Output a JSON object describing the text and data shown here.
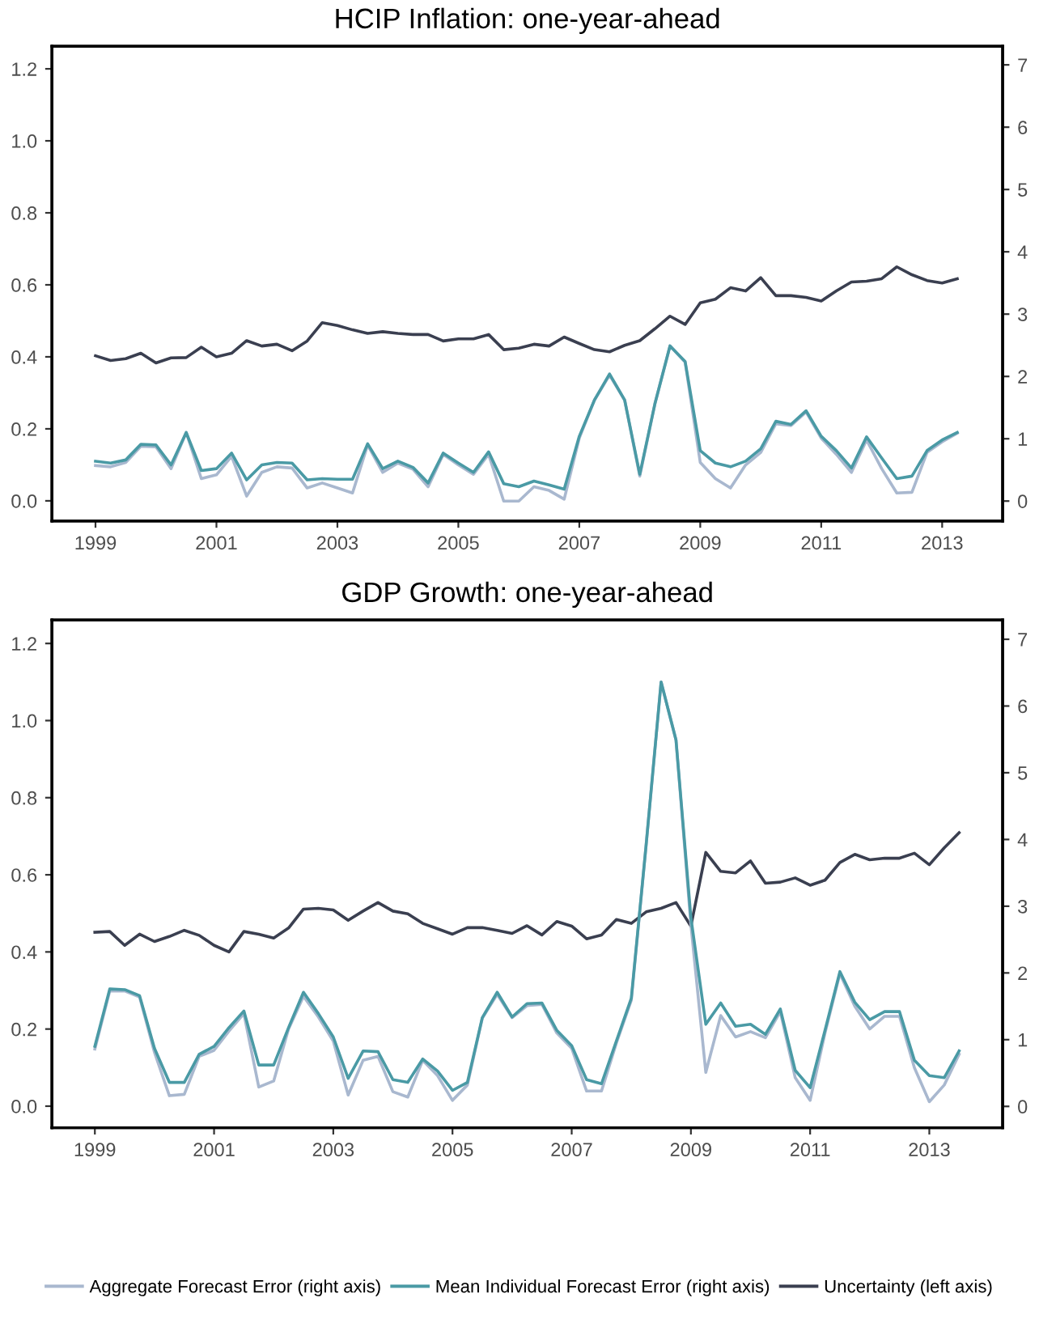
{
  "chart_data": [
    {
      "type": "line",
      "title": "HCIP Inflation: one-year-ahead",
      "x": [
        1999,
        1999.25,
        1999.5,
        1999.75,
        2000,
        2000.25,
        2000.5,
        2000.75,
        2001,
        2001.25,
        2001.5,
        2001.75,
        2002,
        2002.25,
        2002.5,
        2002.75,
        2003,
        2003.25,
        2003.5,
        2003.75,
        2004,
        2004.25,
        2004.5,
        2004.75,
        2005,
        2005.25,
        2005.5,
        2005.75,
        2006,
        2006.25,
        2006.5,
        2006.75,
        2007,
        2007.25,
        2007.5,
        2007.75,
        2008,
        2008.25,
        2008.5,
        2008.75,
        2009,
        2009.25,
        2009.5,
        2009.75,
        2010,
        2010.25,
        2010.5,
        2010.75,
        2011,
        2011.25,
        2011.5,
        2011.75,
        2012,
        2012.25,
        2012.5,
        2012.75,
        2013,
        2013.25
      ],
      "series": [
        {
          "name": "Aggregate Forecast Error (right axis)",
          "color": "#a9b8cf",
          "axis": "y2",
          "values": [
            0.57,
            0.55,
            0.62,
            0.88,
            0.87,
            0.52,
            1.1,
            0.36,
            0.42,
            0.72,
            0.08,
            0.46,
            0.55,
            0.53,
            0.21,
            0.29,
            0.21,
            0.13,
            0.9,
            0.46,
            0.61,
            0.51,
            0.23,
            0.75,
            0.58,
            0.43,
            0.75,
            0.0,
            0.0,
            0.23,
            0.17,
            0.03,
            1.01,
            1.62,
            2.02,
            1.62,
            0.4,
            1.56,
            2.49,
            2.23,
            0.62,
            0.36,
            0.21,
            0.58,
            0.78,
            1.24,
            1.21,
            1.43,
            1.01,
            0.75,
            0.46,
            0.98,
            0.52,
            0.13,
            0.14,
            0.78,
            0.95,
            1.09
          ]
        },
        {
          "name": "Mean Individual Forecast Error (right axis)",
          "color": "#4a9aa5",
          "axis": "y2",
          "values": [
            0.64,
            0.61,
            0.66,
            0.91,
            0.9,
            0.58,
            1.1,
            0.49,
            0.52,
            0.77,
            0.34,
            0.58,
            0.62,
            0.61,
            0.34,
            0.36,
            0.35,
            0.35,
            0.92,
            0.52,
            0.64,
            0.54,
            0.29,
            0.77,
            0.61,
            0.46,
            0.79,
            0.28,
            0.23,
            0.32,
            0.26,
            0.19,
            1.04,
            1.62,
            2.04,
            1.62,
            0.43,
            1.56,
            2.49,
            2.24,
            0.81,
            0.61,
            0.55,
            0.64,
            0.84,
            1.28,
            1.23,
            1.45,
            1.04,
            0.81,
            0.53,
            1.03,
            0.69,
            0.36,
            0.4,
            0.81,
            0.98,
            1.1
          ]
        },
        {
          "name": "Uncertainty (left axis)",
          "color": "#3a3f50",
          "values": [
            0.403,
            0.39,
            0.395,
            0.41,
            0.383,
            0.397,
            0.398,
            0.427,
            0.4,
            0.41,
            0.445,
            0.43,
            0.435,
            0.417,
            0.444,
            0.495,
            0.487,
            0.475,
            0.465,
            0.47,
            0.465,
            0.462,
            0.462,
            0.444,
            0.45,
            0.45,
            0.462,
            0.42,
            0.424,
            0.435,
            0.43,
            0.455,
            0.437,
            0.42,
            0.414,
            0.432,
            0.445,
            0.478,
            0.513,
            0.49,
            0.55,
            0.56,
            0.592,
            0.583,
            0.62,
            0.57,
            0.57,
            0.565,
            0.555,
            0.583,
            0.608,
            0.61,
            0.617,
            0.65,
            0.628,
            0.612,
            0.605,
            0.617
          ]
        }
      ],
      "xlim": [
        1998.28,
        2014.0
      ],
      "xticks": [
        1999,
        2001,
        2003,
        2005,
        2007,
        2009,
        2011,
        2013
      ],
      "ylim": [
        -0.056,
        1.263
      ],
      "yticks": [
        {
          "value": 0,
          "label": "0.0"
        },
        {
          "value": 0.2,
          "label": "0.2"
        },
        {
          "value": 0.4,
          "label": "0.4"
        },
        {
          "value": 0.6,
          "label": "0.6"
        },
        {
          "value": 0.8,
          "label": "0.8"
        },
        {
          "value": 1.0,
          "label": "1.0"
        },
        {
          "value": 1.2,
          "label": "1.2"
        }
      ],
      "y2lim": [
        -0.32,
        7.3
      ],
      "y2ticks": [
        0,
        1,
        2,
        3,
        4,
        5,
        6,
        7
      ],
      "grid": false,
      "line_style": "solid",
      "legend": "bottom"
    },
    {
      "type": "line",
      "title": "GDP Growth: one-year-ahead",
      "x": [
        1999,
        1999.25,
        1999.5,
        1999.75,
        2000,
        2000.25,
        2000.5,
        2000.75,
        2001,
        2001.25,
        2001.5,
        2001.75,
        2002,
        2002.25,
        2002.5,
        2002.75,
        2003,
        2003.25,
        2003.5,
        2003.75,
        2004,
        2004.25,
        2004.5,
        2004.75,
        2005,
        2005.25,
        2005.5,
        2005.75,
        2006,
        2006.25,
        2006.5,
        2006.75,
        2007,
        2007.25,
        2007.5,
        2007.75,
        2008,
        2008.25,
        2008.5,
        2008.75,
        2009,
        2009.25,
        2009.5,
        2009.75,
        2010,
        2010.25,
        2010.5,
        2010.75,
        2011,
        2011.25,
        2011.5,
        2011.75,
        2012,
        2012.25,
        2012.5,
        2012.75,
        2013,
        2013.25,
        2013.5
      ],
      "series": [
        {
          "color": "#a9b8cf",
          "axis": "y2",
          "values": [
            0.86,
            1.73,
            1.73,
            1.64,
            0.81,
            0.16,
            0.18,
            0.75,
            0.84,
            1.13,
            1.39,
            0.29,
            0.38,
            1.16,
            1.65,
            1.34,
            0.98,
            0.17,
            0.69,
            0.75,
            0.22,
            0.14,
            0.69,
            0.46,
            0.09,
            0.32,
            1.32,
            1.68,
            1.33,
            1.51,
            1.53,
            1.1,
            0.87,
            0.23,
            0.23,
            0.95,
            1.59,
            3.93,
            6.36,
            5.49,
            2.72,
            0.51,
            1.36,
            1.04,
            1.12,
            1.03,
            1.42,
            0.43,
            0.09,
            1.1,
            1.99,
            1.5,
            1.16,
            1.35,
            1.35,
            0.58,
            0.07,
            0.32,
            0.78
          ]
        },
        {
          "color": "#4a9aa5",
          "axis": "y2",
          "values": [
            0.9,
            1.76,
            1.75,
            1.66,
            0.87,
            0.36,
            0.36,
            0.78,
            0.9,
            1.18,
            1.43,
            0.62,
            0.62,
            1.18,
            1.71,
            1.39,
            1.04,
            0.42,
            0.83,
            0.82,
            0.4,
            0.36,
            0.71,
            0.53,
            0.24,
            0.36,
            1.33,
            1.71,
            1.34,
            1.54,
            1.55,
            1.14,
            0.91,
            0.4,
            0.34,
            0.98,
            1.62,
            3.93,
            6.36,
            5.49,
            2.83,
            1.23,
            1.55,
            1.2,
            1.23,
            1.08,
            1.46,
            0.54,
            0.28,
            1.14,
            2.02,
            1.56,
            1.3,
            1.42,
            1.42,
            0.69,
            0.46,
            0.43,
            0.83
          ]
        },
        {
          "color": "#3a3f50",
          "values": [
            0.451,
            0.453,
            0.417,
            0.446,
            0.427,
            0.44,
            0.456,
            0.443,
            0.417,
            0.4,
            0.453,
            0.446,
            0.436,
            0.462,
            0.511,
            0.513,
            0.509,
            0.482,
            0.506,
            0.528,
            0.506,
            0.499,
            0.474,
            0.46,
            0.446,
            0.463,
            0.463,
            0.456,
            0.448,
            0.468,
            0.444,
            0.479,
            0.467,
            0.434,
            0.444,
            0.484,
            0.474,
            0.504,
            0.513,
            0.528,
            0.467,
            0.658,
            0.609,
            0.605,
            0.636,
            0.578,
            0.581,
            0.592,
            0.573,
            0.586,
            0.632,
            0.653,
            0.639,
            0.643,
            0.643,
            0.656,
            0.626,
            0.67,
            0.709
          ]
        }
      ],
      "xlim": [
        1998.28,
        2014.23
      ],
      "xticks": [
        1999,
        2001,
        2003,
        2005,
        2007,
        2009,
        2011,
        2013
      ],
      "ylim": [
        -0.056,
        1.261
      ],
      "yticks": [
        {
          "value": 0,
          "label": "0.0"
        },
        {
          "value": 0.2,
          "label": "0.2"
        },
        {
          "value": 0.4,
          "label": "0.4"
        },
        {
          "value": 0.6,
          "label": "0.6"
        },
        {
          "value": 0.8,
          "label": "0.8"
        },
        {
          "value": 1.0,
          "label": "1.0"
        },
        {
          "value": 1.2,
          "label": "1.2"
        }
      ],
      "y2lim": [
        -0.32,
        7.29
      ],
      "y2ticks": [
        0,
        1,
        2,
        3,
        4,
        5,
        6,
        7
      ],
      "grid": false,
      "line_style": "solid"
    }
  ]
}
